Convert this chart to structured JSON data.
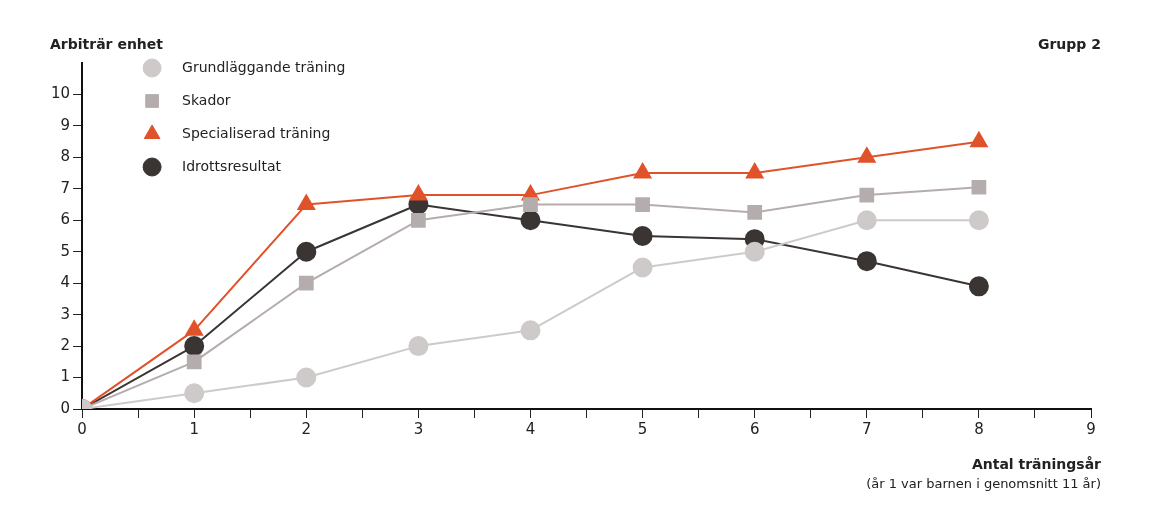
{
  "chart_data": {
    "type": "line",
    "ylabel": "Arbiträr enhet",
    "xlabel": "Antal träningsår",
    "annotations": [
      "Grupp 2",
      "(år 1 var barnen i genomsnitt 11 år)"
    ],
    "x": [
      0,
      1,
      2,
      3,
      4,
      5,
      6,
      7,
      8
    ],
    "xlim": [
      0,
      9
    ],
    "xticks": [
      0,
      {
        "value": 0.5,
        "label": null
      },
      1,
      {
        "value": 1.5,
        "label": null
      },
      2,
      {
        "value": 2.5,
        "label": null
      },
      3,
      {
        "value": 3.5,
        "label": null
      },
      4,
      {
        "value": 4.5,
        "label": null
      },
      5,
      {
        "value": 5.5,
        "label": null
      },
      6,
      {
        "value": 6.5,
        "label": null
      },
      7,
      {
        "value": 7.5,
        "label": null
      },
      8,
      {
        "value": 8.5,
        "label": null
      },
      9
    ],
    "ylim": [
      0,
      11
    ],
    "yticks": [
      0,
      1,
      2,
      3,
      4,
      5,
      6,
      7,
      8,
      9,
      10
    ],
    "grid": false,
    "legend": "top left",
    "line_style": "solid",
    "series": [
      {
        "name": "Grundläggande träning",
        "color": "#cfcaca",
        "marker": "circle",
        "values": [
          0,
          0.5,
          1,
          2,
          2.5,
          4.5,
          5,
          6,
          6
        ]
      },
      {
        "name": "Skador",
        "color": "#b5adad",
        "marker": "square",
        "values": [
          0,
          1.5,
          4,
          6,
          6.5,
          6.5,
          6.25,
          6.8,
          7.05
        ]
      },
      {
        "name": "Specialiserad träning",
        "color": "#e0522a",
        "marker": "triangle",
        "values": [
          0,
          2.5,
          6.5,
          6.8,
          6.8,
          7.5,
          7.5,
          8,
          8.5
        ]
      },
      {
        "name": "Idrottsresultat",
        "color": "#3a3533",
        "marker": "circle",
        "values": [
          0,
          2,
          5,
          6.5,
          6,
          5.5,
          5.4,
          4.7,
          3.9
        ]
      }
    ]
  }
}
